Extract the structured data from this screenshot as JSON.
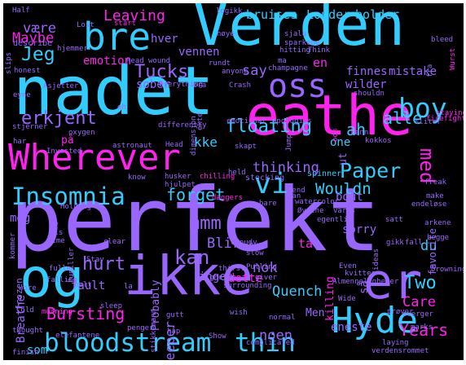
{
  "palette": {
    "background": "#000000",
    "blue": "#33ccff",
    "pink": "#ff22ee",
    "purple": "#9966ff",
    "violet": "#bb44ff",
    "indigo": "#7788ff"
  },
  "words": [
    {
      "text": "perfekt",
      "color": "#9966ff"
    },
    {
      "text": "nadet",
      "color": "#33ccff"
    },
    {
      "text": "Verden",
      "color": "#33ccff"
    },
    {
      "text": "eathe",
      "color": "#ff22ee"
    },
    {
      "text": "ikke",
      "color": "#9966ff"
    },
    {
      "text": "og",
      "color": "#33ccff"
    },
    {
      "text": "Wherever",
      "color": "#ff22ee"
    },
    {
      "text": "er",
      "color": "#9966ff"
    },
    {
      "text": "oss",
      "color": "#9966ff"
    },
    {
      "text": "bre",
      "color": "#33ccff"
    },
    {
      "text": "Hyde",
      "color": "#33ccff"
    },
    {
      "text": "bloodstream",
      "color": "#33ccff"
    },
    {
      "text": "thin",
      "color": "#33ccff"
    },
    {
      "text": "Insomnia",
      "color": "#33ccff"
    },
    {
      "text": "boy",
      "color": "#33ccff"
    },
    {
      "text": "vi",
      "color": "#33ccff"
    },
    {
      "text": "Jeg",
      "color": "#33ccff"
    },
    {
      "text": "Paper",
      "color": "#33ccff"
    },
    {
      "text": "kan",
      "color": "#9966ff"
    },
    {
      "text": "floating",
      "color": "#33ccff"
    },
    {
      "text": "Tucks",
      "color": "#9966ff"
    },
    {
      "text": "hurt",
      "color": "#9966ff"
    },
    {
      "text": "erkjent",
      "color": "#9966ff"
    },
    {
      "text": "forget",
      "color": "#33ccff"
    },
    {
      "text": "mmm",
      "color": "#9966ff"
    },
    {
      "text": "Two",
      "color": "#33ccff"
    },
    {
      "text": "med",
      "color": "#ff22ee"
    },
    {
      "text": "ah",
      "color": "#33ccff"
    },
    {
      "text": "alle",
      "color": "#33ccff"
    },
    {
      "text": "Bursting",
      "color": "#ff22ee"
    },
    {
      "text": "Years",
      "color": "#ff22ee"
    },
    {
      "text": "Leaving",
      "color": "#ff22ee"
    },
    {
      "text": "være",
      "color": "#9966ff"
    },
    {
      "text": "Maybe",
      "color": "#ff22ee"
    },
    {
      "text": "hver",
      "color": "#9966ff"
    },
    {
      "text": "vennen",
      "color": "#9966ff"
    },
    {
      "text": "emotion",
      "color": "#ff22ee"
    },
    {
      "text": "bruises",
      "color": "#33ccff"
    },
    {
      "text": "Louder",
      "color": "#33ccff"
    },
    {
      "text": "bolder",
      "color": "#33ccff"
    },
    {
      "text": "spinner",
      "color": "#33ccff"
    },
    {
      "text": "en",
      "color": "#ff22ee"
    },
    {
      "text": "finnes",
      "color": "#9966ff"
    },
    {
      "text": "mistake",
      "color": "#9966ff"
    },
    {
      "text": "wilder",
      "color": "#9966ff"
    },
    {
      "text": "sober",
      "color": "#9966ff"
    },
    {
      "text": "say",
      "color": "#9966ff"
    },
    {
      "text": "thinking",
      "color": "#9966ff"
    },
    {
      "text": "Wouldn",
      "color": "#33ccff"
    },
    {
      "text": "bout",
      "color": "#9966ff"
    },
    {
      "text": "sorry",
      "color": "#9966ff"
    },
    {
      "text": "dette",
      "color": "#ff22ee"
    },
    {
      "text": "nok",
      "color": "#9966ff"
    },
    {
      "text": "ingen",
      "color": "#9966ff"
    },
    {
      "text": "Blir",
      "color": "#9966ff"
    },
    {
      "text": "ta",
      "color": "#ff22ee"
    },
    {
      "text": "du",
      "color": "#33ccff"
    },
    {
      "text": "Breathe",
      "color": "#9966ff"
    },
    {
      "text": "fault",
      "color": "#9966ff"
    },
    {
      "text": "Deeper",
      "color": "#9966ff"
    },
    {
      "text": "Quench",
      "color": "#33ccff"
    },
    {
      "text": "Care",
      "color": "#ff22ee"
    },
    {
      "text": "noen",
      "color": "#9966ff"
    },
    {
      "text": "Men",
      "color": "#9966ff"
    },
    {
      "text": "eneste",
      "color": "#9966ff"
    },
    {
      "text": "som",
      "color": "#33ccff"
    },
    {
      "text": "kke",
      "color": "#33ccff"
    },
    {
      "text": "meg",
      "color": "#9966ff"
    },
    {
      "text": "på",
      "color": "#ff22ee"
    },
    {
      "text": "one",
      "color": "#33ccff"
    },
    {
      "text": "ut",
      "color": "#9966ff"
    },
    {
      "text": "killing",
      "color": "#ff22ee"
    },
    {
      "text": "Probably",
      "color": "#9966ff"
    },
    {
      "text": "favorite",
      "color": "#9966ff"
    },
    {
      "text": "frozen",
      "color": "#9966ff"
    },
    {
      "text": "så",
      "color": "#9966ff"
    },
    {
      "text": "describe",
      "color": "#9966ff"
    },
    {
      "text": "Half",
      "color": "#9966ff"
    },
    {
      "text": "logikk",
      "color": "#9966ff"
    },
    {
      "text": "Lost",
      "color": "#9966ff"
    },
    {
      "text": "start",
      "color": "#ff22ee"
    },
    {
      "text": "høye",
      "color": "#9966ff"
    },
    {
      "text": "sjalu",
      "color": "#9966ff"
    },
    {
      "text": "sparkene",
      "color": "#9966ff"
    },
    {
      "text": "bleed",
      "color": "#9966ff"
    },
    {
      "text": "sliter",
      "color": "#9966ff"
    },
    {
      "text": "slips",
      "color": "#9966ff"
    },
    {
      "text": "Read",
      "color": "#9966ff"
    },
    {
      "text": "wound",
      "color": "#9966ff"
    },
    {
      "text": "rundt",
      "color": "#9966ff"
    },
    {
      "text": "hitting",
      "color": "#9966ff"
    },
    {
      "text": "Think",
      "color": "#9966ff"
    },
    {
      "text": "anyone",
      "color": "#9966ff"
    },
    {
      "text": "ma",
      "color": "#9966ff"
    },
    {
      "text": "champagne",
      "color": "#9966ff"
    },
    {
      "text": "honest",
      "color": "#9966ff"
    },
    {
      "text": "Asjetter",
      "color": "#9966ff"
    },
    {
      "text": "Everything",
      "color": "#9966ff"
    },
    {
      "text": "bra",
      "color": "#9966ff"
    },
    {
      "text": "Crash",
      "color": "#9966ff"
    },
    {
      "text": "eyne",
      "color": "#9966ff"
    },
    {
      "text": "eh",
      "color": "#9966ff"
    },
    {
      "text": "shouldn",
      "color": "#9966ff"
    },
    {
      "text": "staying",
      "color": "#ff22ee"
    },
    {
      "text": "firefighter",
      "color": "#ff22ee"
    },
    {
      "text": "differently",
      "color": "#9966ff"
    },
    {
      "text": "emotional",
      "color": "#9966ff"
    },
    {
      "text": "apologies",
      "color": "#9966ff"
    },
    {
      "text": "ekte",
      "color": "#9966ff"
    },
    {
      "text": "dimensjon",
      "color": "#9966ff"
    },
    {
      "text": "ooh",
      "color": "#ff22ee"
    },
    {
      "text": "enn",
      "color": "#9966ff"
    },
    {
      "text": "stjerner",
      "color": "#9966ff"
    },
    {
      "text": "oxygen",
      "color": "#9966ff"
    },
    {
      "text": "astronaut",
      "color": "#9966ff"
    },
    {
      "text": "Head",
      "color": "#9966ff"
    },
    {
      "text": "skapt",
      "color": "#9966ff"
    },
    {
      "text": "Jump",
      "color": "#9966ff"
    },
    {
      "text": "kokkos",
      "color": "#9966ff"
    },
    {
      "text": "har",
      "color": "#9966ff"
    },
    {
      "text": "Invested",
      "color": "#9966ff"
    },
    {
      "text": "know",
      "color": "#9966ff"
    },
    {
      "text": "husker",
      "color": "#9966ff"
    },
    {
      "text": "chilling",
      "color": "#ff22ee"
    },
    {
      "text": "freak",
      "color": "#9966ff"
    },
    {
      "text": "hjulpet",
      "color": "#9966ff"
    },
    {
      "text": "daggers",
      "color": "#ff22ee"
    },
    {
      "text": "held",
      "color": "#9966ff"
    },
    {
      "text": "stocking",
      "color": "#9966ff"
    },
    {
      "text": "tend",
      "color": "#9966ff"
    },
    {
      "text": "kan",
      "color": "#9966ff"
    },
    {
      "text": "bare",
      "color": "#9966ff"
    },
    {
      "text": "watercolor",
      "color": "#9966ff"
    },
    {
      "text": "make",
      "color": "#9966ff"
    },
    {
      "text": "endeløse",
      "color": "#9966ff"
    },
    {
      "text": "Holding",
      "color": "#9966ff"
    },
    {
      "text": "Øynene",
      "color": "#9966ff"
    },
    {
      "text": "våres",
      "color": "#9966ff"
    },
    {
      "text": "egentlig",
      "color": "#9966ff"
    },
    {
      "text": "satt",
      "color": "#9966ff"
    },
    {
      "text": "arkene",
      "color": "#9966ff"
    },
    {
      "text": "begge",
      "color": "#9966ff"
    },
    {
      "text": "lime",
      "color": "#9966ff"
    },
    {
      "text": "clear",
      "color": "#9966ff"
    },
    {
      "text": "cloudy",
      "color": "#9966ff"
    },
    {
      "text": "hva",
      "color": "#9966ff"
    },
    {
      "text": "ideas",
      "color": "#9966ff"
    },
    {
      "text": "Pupiller",
      "color": "#9966ff"
    },
    {
      "text": "Stay",
      "color": "#9966ff"
    },
    {
      "text": "slow",
      "color": "#9966ff"
    },
    {
      "text": "thirst",
      "color": "#9966ff"
    },
    {
      "text": "Pulling",
      "color": "#9966ff"
    },
    {
      "text": "fulle",
      "color": "#9966ff"
    },
    {
      "text": "falling",
      "color": "#9966ff"
    },
    {
      "text": "wore",
      "color": "#9966ff"
    },
    {
      "text": "helt",
      "color": "#9966ff"
    },
    {
      "text": "la",
      "color": "#9966ff"
    },
    {
      "text": "Even",
      "color": "#9966ff"
    },
    {
      "text": "kvittes",
      "color": "#9966ff"
    },
    {
      "text": "Drowning",
      "color": "#9966ff"
    },
    {
      "text": "Almenneligheter",
      "color": "#9966ff"
    },
    {
      "text": "evigheten",
      "color": "#9966ff"
    },
    {
      "text": "surrounding",
      "color": "#9966ff"
    },
    {
      "text": "giver",
      "color": "#9966ff"
    },
    {
      "text": "Wide",
      "color": "#9966ff"
    },
    {
      "text": "morning",
      "color": "#ff22ee"
    },
    {
      "text": "sleep",
      "color": "#9966ff"
    },
    {
      "text": "gutt",
      "color": "#9966ff"
    },
    {
      "text": "Cold",
      "color": "#9966ff"
    },
    {
      "text": "stikkemann",
      "color": "#9966ff"
    },
    {
      "text": "wish",
      "color": "#9966ff"
    },
    {
      "text": "normal",
      "color": "#9966ff"
    },
    {
      "text": "prøver",
      "color": "#9966ff"
    },
    {
      "text": "sverger",
      "color": "#9966ff"
    },
    {
      "text": "marks",
      "color": "#9966ff"
    },
    {
      "text": "thought",
      "color": "#9966ff"
    },
    {
      "text": "elefantene",
      "color": "#9966ff"
    },
    {
      "text": "håp",
      "color": "#9966ff"
    },
    {
      "text": "penger",
      "color": "#9966ff"
    },
    {
      "text": "Show",
      "color": "#9966ff"
    },
    {
      "text": "complicated",
      "color": "#9966ff"
    },
    {
      "text": "laying",
      "color": "#9966ff"
    },
    {
      "text": "finish",
      "color": "#9966ff"
    },
    {
      "text": "verdensrommet",
      "color": "#9966ff"
    },
    {
      "text": "Wurst",
      "color": "#ff22ee"
    },
    {
      "text": "fra",
      "color": "#9966ff"
    },
    {
      "text": "hjemmer",
      "color": "#9966ff"
    },
    {
      "text": "kommer",
      "color": "#9966ff"
    },
    {
      "text": "av",
      "color": "#9966ff"
    },
    {
      "text": "vis",
      "color": "#9966ff"
    },
    {
      "text": "gikk",
      "color": "#9966ff"
    },
    {
      "text": "fall",
      "color": "#9966ff"
    }
  ]
}
